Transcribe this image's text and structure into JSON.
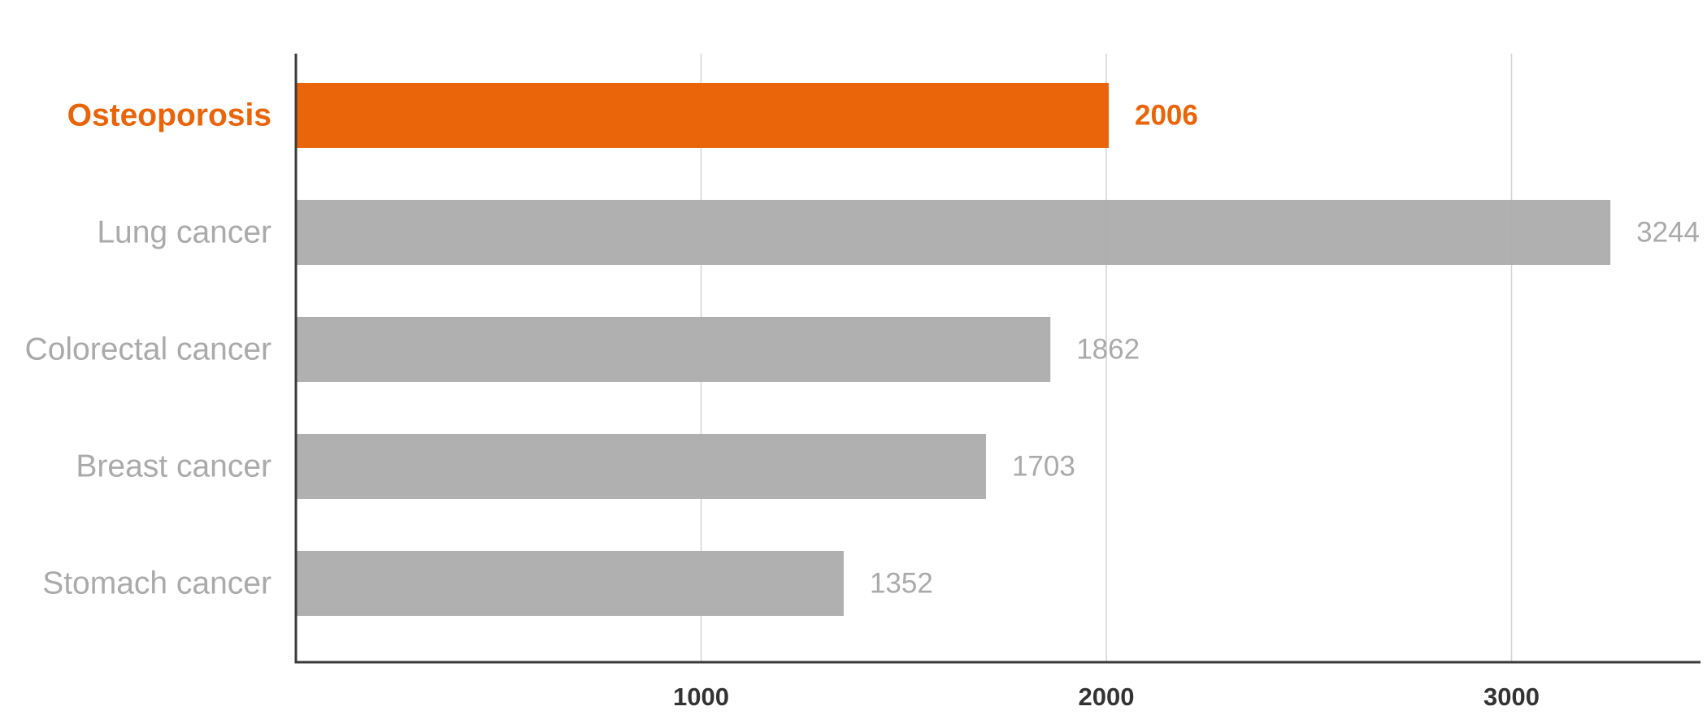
{
  "chart_data": {
    "type": "bar",
    "orientation": "horizontal",
    "categories": [
      "Osteoporosis",
      "Lung cancer",
      "Colorectal cancer",
      "Breast cancer",
      "Stomach cancer"
    ],
    "values": [
      2006,
      3244,
      1862,
      1703,
      1352
    ],
    "highlight": "Osteoporosis",
    "title": "",
    "xlabel": "",
    "ylabel": "",
    "xlim": [
      0,
      3500
    ],
    "xticks": [
      1000,
      2000,
      3000
    ],
    "grid": "vertical",
    "legend": "none",
    "colors": {
      "highlight": "#ea6409",
      "bar": "#acacac",
      "muted_label": "#aaaaaa",
      "axis": "#3a3a3a",
      "grid": "#d4d4d4",
      "tick_label": "#333333"
    }
  }
}
